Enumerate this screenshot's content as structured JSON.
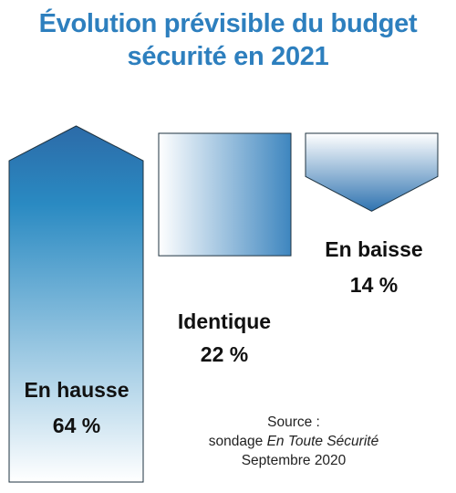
{
  "chart_data": {
    "type": "bar",
    "title_lines": [
      "Évolution prévisible du budget",
      "sécurité en 2021"
    ],
    "categories": [
      "En hausse",
      "Identique",
      "En baisse"
    ],
    "values": [
      64,
      22,
      14
    ],
    "value_labels": [
      "64 %",
      "22 %",
      "14 %"
    ],
    "unit": "%",
    "colors": {
      "title": "#2d7fbe",
      "dark_blue": "#2c6ba8",
      "mid_blue": "#2a8ac2",
      "light": "#ffffff"
    }
  },
  "source": {
    "line1": "Source :",
    "line2_plain": "sondage ",
    "line2_italic": "En Toute Sécurité",
    "line3": "Septembre 2020"
  }
}
